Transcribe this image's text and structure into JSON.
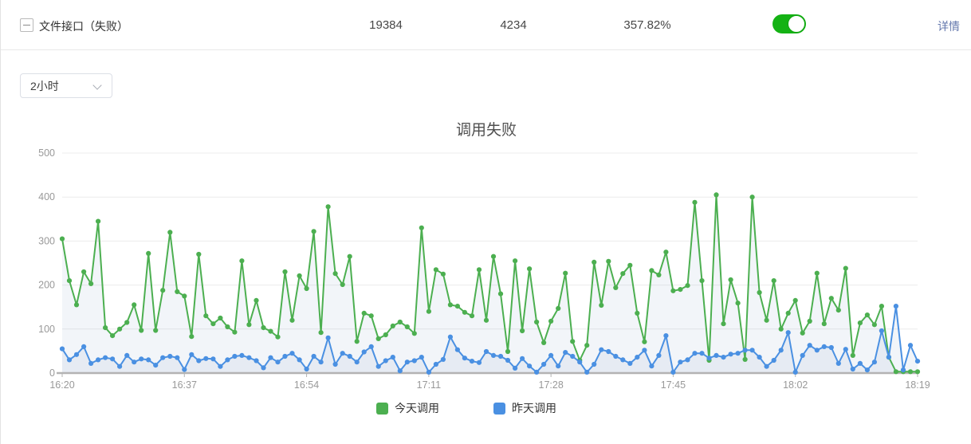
{
  "header": {
    "title": "文件接口（失败）",
    "metrics": [
      "19384",
      "4234",
      "357.82%"
    ],
    "toggle_on": true,
    "detail_link": "详情"
  },
  "toolbar": {
    "time_range_value": "2小时"
  },
  "colors": {
    "series_today": "#4caf50",
    "series_yesterday": "#4a90e2",
    "toggle_green": "#14b214",
    "link_blue": "#6478ad",
    "axis_line": "#b3b3b3",
    "grid_line": "#ececec",
    "axis_text": "#999999"
  },
  "chart_data": {
    "type": "line",
    "title": "调用失败",
    "xlabel": "",
    "ylabel": "",
    "ylim": [
      0,
      500
    ],
    "y_ticks": [
      0,
      100,
      200,
      300,
      400,
      500
    ],
    "grid": true,
    "legend_position": "bottom",
    "x_start": "16:20",
    "x_end": "18:19",
    "x_step_minutes": 1,
    "points_per_series": 120,
    "x_labels": [
      "16:20",
      "16:37",
      "16:54",
      "17:11",
      "17:28",
      "17:45",
      "18:02",
      "18:19"
    ],
    "x_label_indices": [
      0,
      17,
      34,
      51,
      68,
      85,
      102,
      119
    ],
    "series": [
      {
        "name": "今天调用",
        "color": "#4caf50",
        "values": [
          305,
          210,
          155,
          230,
          203,
          345,
          103,
          85,
          100,
          115,
          155,
          97,
          272,
          97,
          188,
          320,
          185,
          175,
          83,
          270,
          130,
          112,
          125,
          105,
          93,
          255,
          110,
          165,
          103,
          95,
          82,
          230,
          120,
          221,
          192,
          322,
          92,
          378,
          226,
          201,
          265,
          72,
          136,
          130,
          78,
          87,
          107,
          116,
          105,
          90,
          330,
          140,
          235,
          225,
          155,
          152,
          138,
          130,
          235,
          120,
          265,
          180,
          49,
          255,
          96,
          237,
          116,
          69,
          118,
          147,
          227,
          72,
          29,
          63,
          252,
          154,
          254,
          194,
          226,
          245,
          136,
          71,
          233,
          223,
          275,
          187,
          190,
          199,
          388,
          210,
          29,
          405,
          112,
          212,
          159,
          31,
          400,
          183,
          120,
          210,
          100,
          136,
          165,
          91,
          118,
          227,
          112,
          170,
          143,
          238,
          40,
          114,
          132,
          110,
          152,
          36,
          3,
          3,
          3,
          3
        ]
      },
      {
        "name": "昨天调用",
        "color": "#4a90e2",
        "values": [
          55,
          30,
          42,
          60,
          22,
          30,
          35,
          32,
          15,
          40,
          25,
          32,
          30,
          18,
          35,
          38,
          35,
          8,
          42,
          28,
          33,
          32,
          15,
          30,
          38,
          40,
          35,
          28,
          12,
          35,
          25,
          38,
          45,
          30,
          9,
          38,
          25,
          80,
          20,
          45,
          38,
          25,
          48,
          60,
          15,
          28,
          36,
          5,
          25,
          28,
          36,
          2,
          20,
          31,
          82,
          53,
          34,
          27,
          24,
          49,
          40,
          38,
          29,
          11,
          33,
          16,
          2,
          20,
          40,
          16,
          47,
          38,
          25,
          2,
          20,
          53,
          49,
          38,
          30,
          22,
          36,
          52,
          16,
          40,
          85,
          2,
          25,
          30,
          45,
          45,
          34,
          40,
          36,
          43,
          45,
          52,
          52,
          36,
          15,
          29,
          52,
          92,
          2,
          40,
          63,
          52,
          60,
          58,
          22,
          54,
          9,
          22,
          7,
          25,
          96,
          36,
          152,
          7,
          63,
          27
        ]
      }
    ]
  }
}
